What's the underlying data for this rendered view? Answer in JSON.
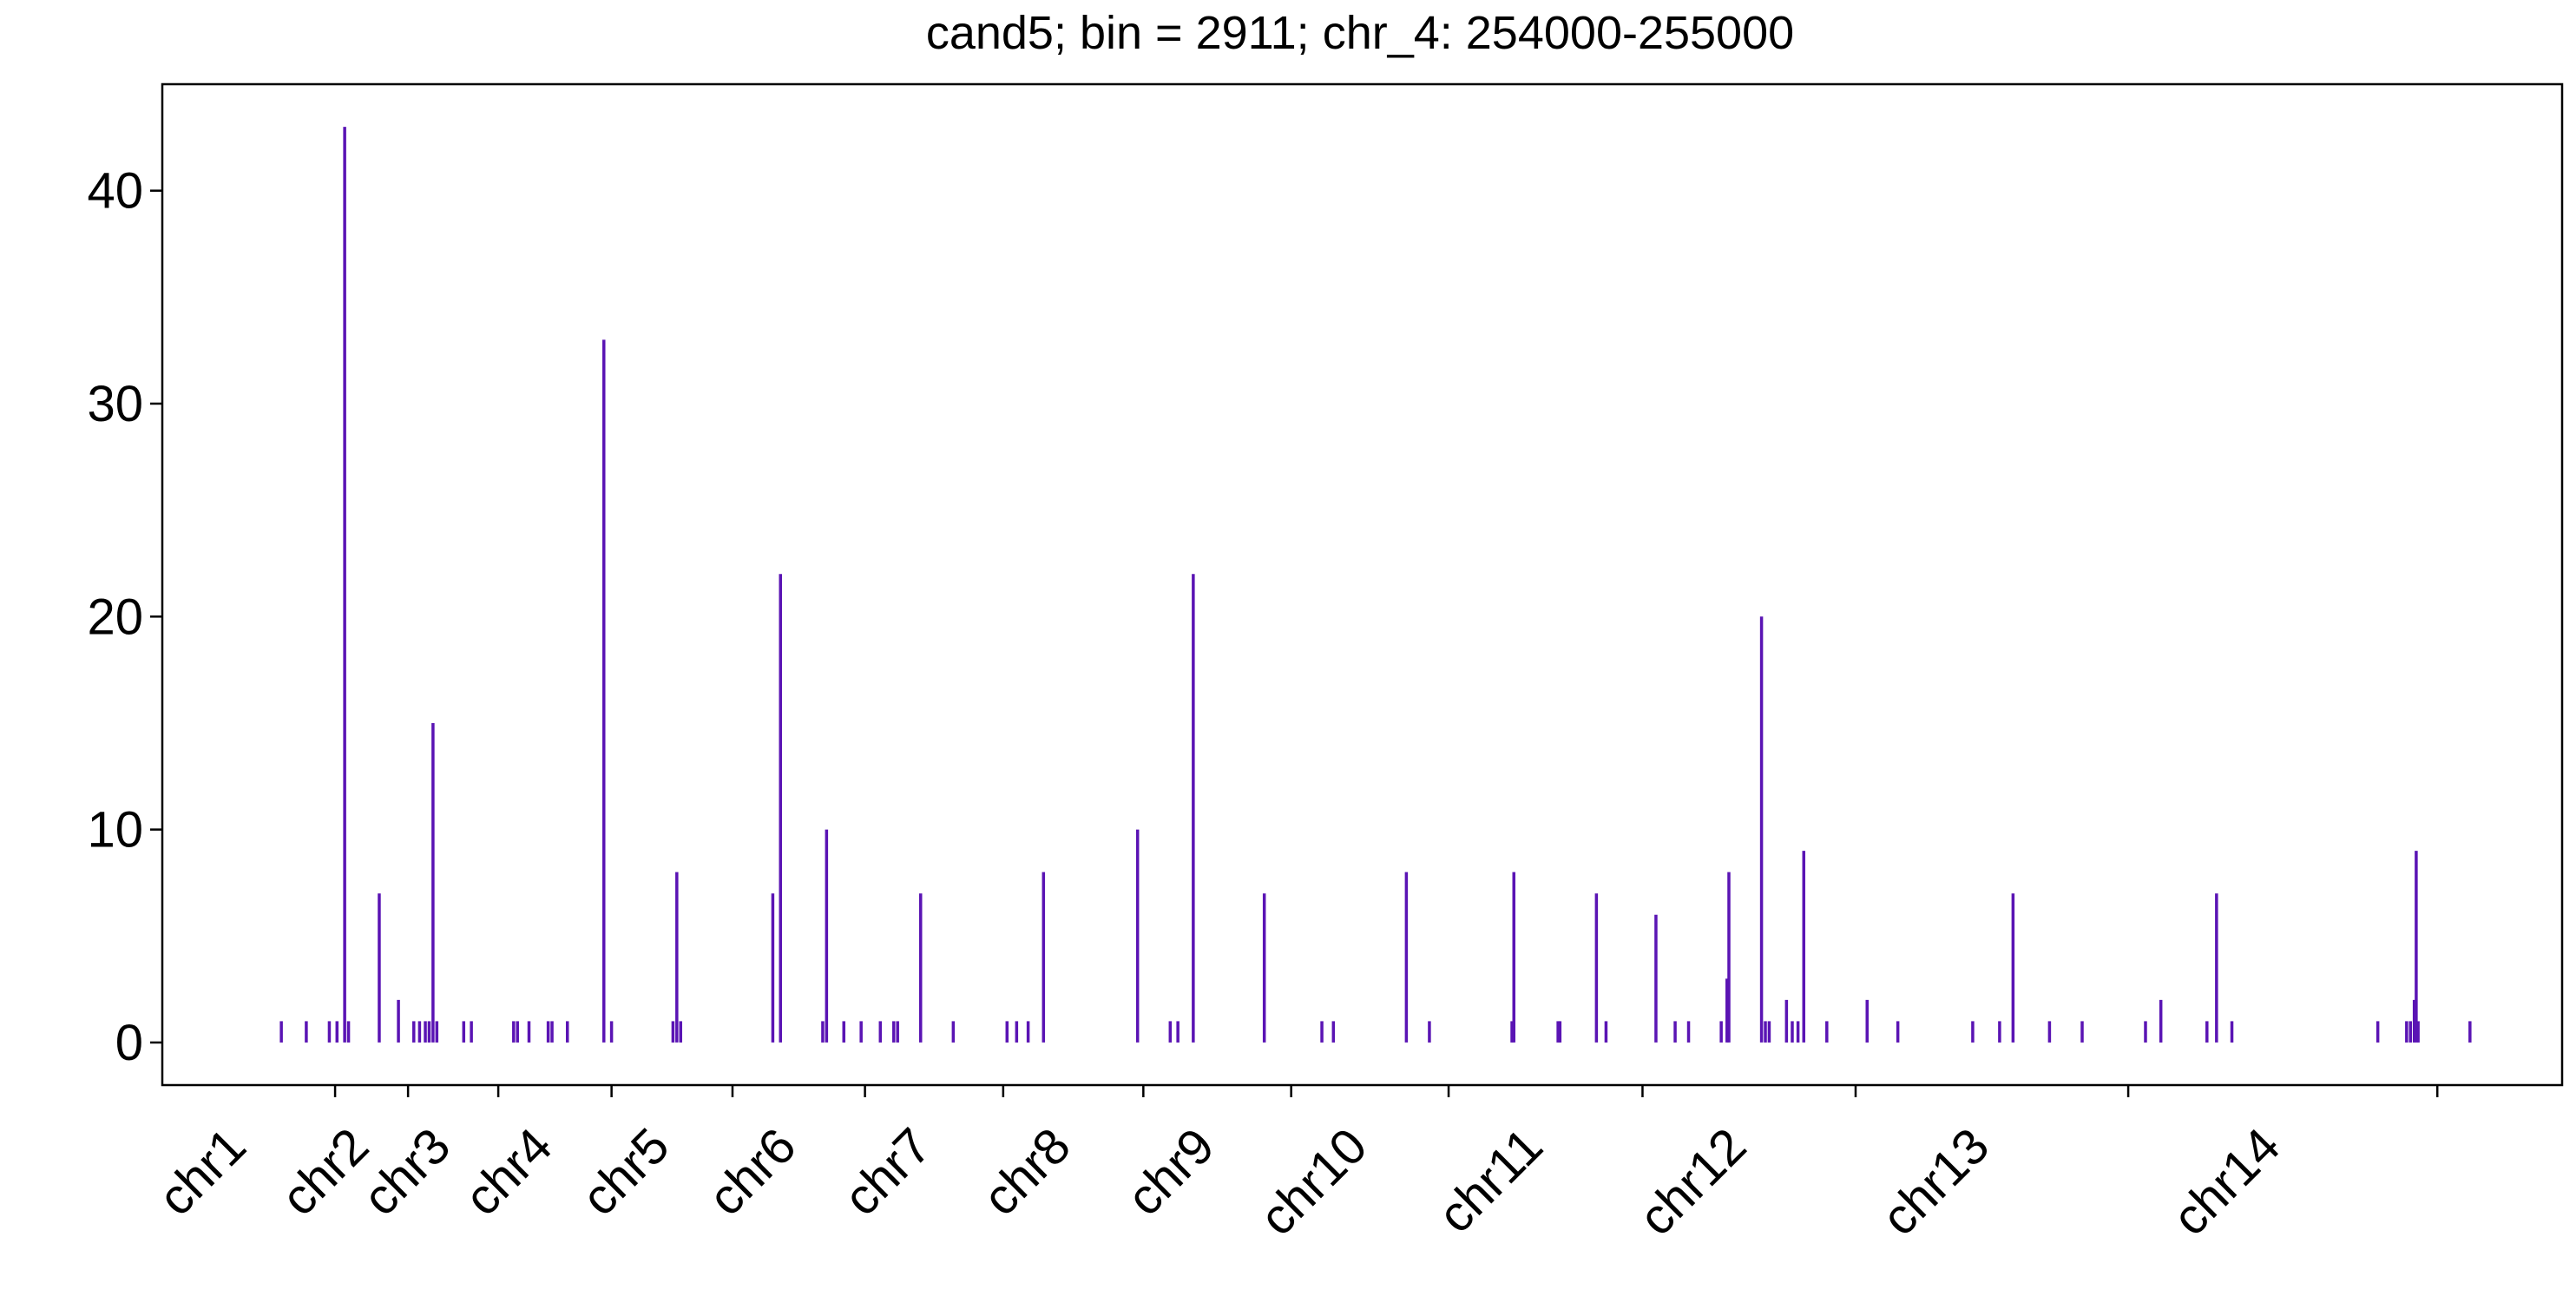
{
  "chart_data": {
    "type": "bar",
    "title": "cand5; bin = 2911; chr_4: 254000-255000",
    "xlabel": "",
    "ylabel": "",
    "ylim": [
      -2,
      45
    ],
    "yticks": [
      0,
      10,
      20,
      30,
      40
    ],
    "xlim": [
      0,
      1250
    ],
    "grid": false,
    "bar_color": "#5a14b4",
    "chromosome_boundaries": [
      90,
      128,
      175,
      234,
      297,
      366,
      438,
      511,
      588,
      670,
      771,
      882,
      1024,
      1185
    ],
    "chromosomes": [
      {
        "label": "chr1",
        "start": 0,
        "end": 90
      },
      {
        "label": "chr2",
        "start": 90,
        "end": 128
      },
      {
        "label": "chr3",
        "start": 128,
        "end": 175
      },
      {
        "label": "chr4",
        "start": 175,
        "end": 234
      },
      {
        "label": "chr5",
        "start": 234,
        "end": 297
      },
      {
        "label": "chr6",
        "start": 297,
        "end": 366
      },
      {
        "label": "chr7",
        "start": 366,
        "end": 438
      },
      {
        "label": "chr8",
        "start": 438,
        "end": 511
      },
      {
        "label": "chr9",
        "start": 511,
        "end": 588
      },
      {
        "label": "chr10",
        "start": 588,
        "end": 670
      },
      {
        "label": "chr11",
        "start": 670,
        "end": 771
      },
      {
        "label": "chr12",
        "start": 771,
        "end": 882
      },
      {
        "label": "chr13",
        "start": 882,
        "end": 1024
      },
      {
        "label": "chr14",
        "start": 1024,
        "end": 1185
      }
    ],
    "points": [
      {
        "x": 62,
        "y": 1
      },
      {
        "x": 75,
        "y": 1
      },
      {
        "x": 87,
        "y": 1
      },
      {
        "x": 91,
        "y": 1
      },
      {
        "x": 95,
        "y": 43
      },
      {
        "x": 97,
        "y": 1
      },
      {
        "x": 113,
        "y": 7
      },
      {
        "x": 123,
        "y": 2
      },
      {
        "x": 131,
        "y": 1
      },
      {
        "x": 134,
        "y": 1
      },
      {
        "x": 137,
        "y": 1
      },
      {
        "x": 139,
        "y": 1
      },
      {
        "x": 141,
        "y": 15
      },
      {
        "x": 143,
        "y": 1
      },
      {
        "x": 157,
        "y": 1
      },
      {
        "x": 161,
        "y": 1
      },
      {
        "x": 183,
        "y": 1
      },
      {
        "x": 185,
        "y": 1
      },
      {
        "x": 191,
        "y": 1
      },
      {
        "x": 201,
        "y": 1
      },
      {
        "x": 203,
        "y": 1
      },
      {
        "x": 211,
        "y": 1
      },
      {
        "x": 230,
        "y": 33
      },
      {
        "x": 234,
        "y": 1
      },
      {
        "x": 266,
        "y": 1
      },
      {
        "x": 268,
        "y": 8
      },
      {
        "x": 270,
        "y": 1
      },
      {
        "x": 318,
        "y": 7
      },
      {
        "x": 322,
        "y": 22
      },
      {
        "x": 344,
        "y": 1
      },
      {
        "x": 346,
        "y": 10
      },
      {
        "x": 355,
        "y": 1
      },
      {
        "x": 364,
        "y": 1
      },
      {
        "x": 374,
        "y": 1
      },
      {
        "x": 381,
        "y": 1
      },
      {
        "x": 383,
        "y": 1
      },
      {
        "x": 395,
        "y": 7
      },
      {
        "x": 412,
        "y": 1
      },
      {
        "x": 440,
        "y": 1
      },
      {
        "x": 445,
        "y": 1
      },
      {
        "x": 451,
        "y": 1
      },
      {
        "x": 459,
        "y": 8
      },
      {
        "x": 508,
        "y": 10
      },
      {
        "x": 525,
        "y": 1
      },
      {
        "x": 529,
        "y": 1
      },
      {
        "x": 537,
        "y": 22
      },
      {
        "x": 574,
        "y": 7
      },
      {
        "x": 604,
        "y": 1
      },
      {
        "x": 610,
        "y": 1
      },
      {
        "x": 648,
        "y": 8
      },
      {
        "x": 660,
        "y": 1
      },
      {
        "x": 703,
        "y": 1
      },
      {
        "x": 704,
        "y": 8
      },
      {
        "x": 727,
        "y": 1
      },
      {
        "x": 728,
        "y": 1
      },
      {
        "x": 747,
        "y": 7
      },
      {
        "x": 752,
        "y": 1
      },
      {
        "x": 778,
        "y": 6
      },
      {
        "x": 788,
        "y": 1
      },
      {
        "x": 795,
        "y": 1
      },
      {
        "x": 812,
        "y": 1
      },
      {
        "x": 815,
        "y": 3
      },
      {
        "x": 816,
        "y": 8
      },
      {
        "x": 833,
        "y": 20
      },
      {
        "x": 835,
        "y": 1
      },
      {
        "x": 837,
        "y": 1
      },
      {
        "x": 846,
        "y": 2
      },
      {
        "x": 849,
        "y": 1
      },
      {
        "x": 852,
        "y": 1
      },
      {
        "x": 855,
        "y": 9
      },
      {
        "x": 867,
        "y": 1
      },
      {
        "x": 888,
        "y": 2
      },
      {
        "x": 904,
        "y": 1
      },
      {
        "x": 943,
        "y": 1
      },
      {
        "x": 957,
        "y": 1
      },
      {
        "x": 964,
        "y": 7
      },
      {
        "x": 983,
        "y": 1
      },
      {
        "x": 1000,
        "y": 1
      },
      {
        "x": 1033,
        "y": 1
      },
      {
        "x": 1041,
        "y": 2
      },
      {
        "x": 1065,
        "y": 1
      },
      {
        "x": 1070,
        "y": 7
      },
      {
        "x": 1078,
        "y": 1
      },
      {
        "x": 1154,
        "y": 1
      },
      {
        "x": 1169,
        "y": 1
      },
      {
        "x": 1171,
        "y": 1
      },
      {
        "x": 1173,
        "y": 2
      },
      {
        "x": 1174,
        "y": 9
      },
      {
        "x": 1175,
        "y": 1
      },
      {
        "x": 1202,
        "y": 1
      }
    ]
  }
}
